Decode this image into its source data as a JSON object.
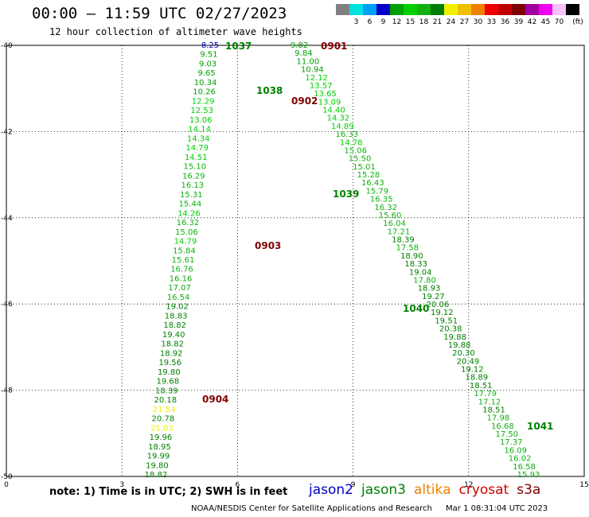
{
  "title": "00:00 – 11:59 UTC 02/27/2023",
  "subtitle": "12 hour collection of altimeter wave heights",
  "legend": {
    "unit_label": "(ft)",
    "bins": [
      {
        "label": "",
        "color": "#808080"
      },
      {
        "label": "3",
        "color": "#00e0e0"
      },
      {
        "label": "6",
        "color": "#00a0f8"
      },
      {
        "label": "9",
        "color": "#0000c8"
      },
      {
        "label": "12",
        "color": "#00a000"
      },
      {
        "label": "15",
        "color": "#00d000"
      },
      {
        "label": "18",
        "color": "#10b010"
      },
      {
        "label": "21",
        "color": "#008000"
      },
      {
        "label": "24",
        "color": "#f0f000"
      },
      {
        "label": "27",
        "color": "#f0c000"
      },
      {
        "label": "30",
        "color": "#f08000"
      },
      {
        "label": "33",
        "color": "#f00000"
      },
      {
        "label": "36",
        "color": "#c00000"
      },
      {
        "label": "39",
        "color": "#800000"
      },
      {
        "label": "42",
        "color": "#a000a0"
      },
      {
        "label": "45",
        "color": "#f000f0"
      },
      {
        "label": "70",
        "color": "#f8c0f8"
      },
      {
        "label": "",
        "color": "#000000"
      }
    ]
  },
  "map": {
    "lon_range": [
      0,
      15
    ],
    "lat_range": [
      -50,
      -40
    ],
    "x_ticks": [
      "0",
      "3",
      "6",
      "9",
      "12",
      "15"
    ],
    "y_ticks": [
      "-40",
      "-42",
      "-44",
      "-46",
      "-48",
      "-50"
    ]
  },
  "passes": [
    {
      "label": "1037",
      "color": "#008000"
    },
    {
      "label": "0901",
      "color": "#800000"
    },
    {
      "label": "1038",
      "color": "#008000"
    },
    {
      "label": "0902",
      "color": "#800000"
    },
    {
      "label": "1039",
      "color": "#008000"
    },
    {
      "label": "0903",
      "color": "#800000"
    },
    {
      "label": "1040",
      "color": "#008000"
    },
    {
      "label": "0904",
      "color": "#800000"
    },
    {
      "label": "1041",
      "color": "#008000"
    }
  ],
  "track_a": [
    "8.25",
    "9.51",
    "9.03",
    "9.65",
    "10.34",
    "10.26",
    "12.29",
    "12.53",
    "13.06",
    "14.14",
    "14.34",
    "14.79",
    "14.51",
    "15.10",
    "16.29",
    "16.13",
    "15.31",
    "15.44",
    "14.26",
    "16.32",
    "15.06",
    "14.79",
    "15.84",
    "15.61",
    "16.76",
    "16.16",
    "17.07",
    "16.54",
    "19.02",
    "18.83",
    "18.82",
    "19.40",
    "18.82",
    "18.92",
    "19.56",
    "19.80",
    "19.68",
    "18.39",
    "20.18",
    "21.54",
    "20.78",
    "21.03",
    "19.96",
    "18.95",
    "19.99",
    "19.80",
    "18.82"
  ],
  "track_b": [
    "9.82",
    "9.84",
    "11.00",
    "10.94",
    "12.12",
    "13.57",
    "13.65",
    "13.09",
    "14.40",
    "14.32",
    "14.89",
    "16.33",
    "14.78",
    "15.06",
    "15.50",
    "15.01",
    "15.28",
    "16.43",
    "15.79",
    "16.35",
    "16.32",
    "15.60",
    "16.04",
    "17.21",
    "18.39",
    "17.58",
    "18.90",
    "18.33",
    "19.04",
    "17.80",
    "18.93",
    "19.27",
    "20.06",
    "19.12",
    "19.51",
    "20.38",
    "19.88",
    "19.88",
    "20.30",
    "20.49",
    "19.12",
    "18.89",
    "18.51",
    "17.79",
    "17.12",
    "18.51",
    "17.98",
    "16.68",
    "17.50",
    "17.37",
    "16.09",
    "16.02",
    "16.58",
    "15.93"
  ],
  "note": "note:  1) Time is in UTC;  2) SWH is in feet",
  "satellites": [
    {
      "name": "jason2",
      "color": "#0000c8"
    },
    {
      "name": "jason3",
      "color": "#008000"
    },
    {
      "name": "altika",
      "color": "#f08000"
    },
    {
      "name": "cryosat",
      "color": "#d00000"
    },
    {
      "name": "s3a",
      "color": "#800000"
    }
  ],
  "footer": {
    "credit": "NOAA/NESDIS Center for Satellite Applications and Research",
    "timestamp": "Mar  1 08:31:04 UTC 2023"
  }
}
